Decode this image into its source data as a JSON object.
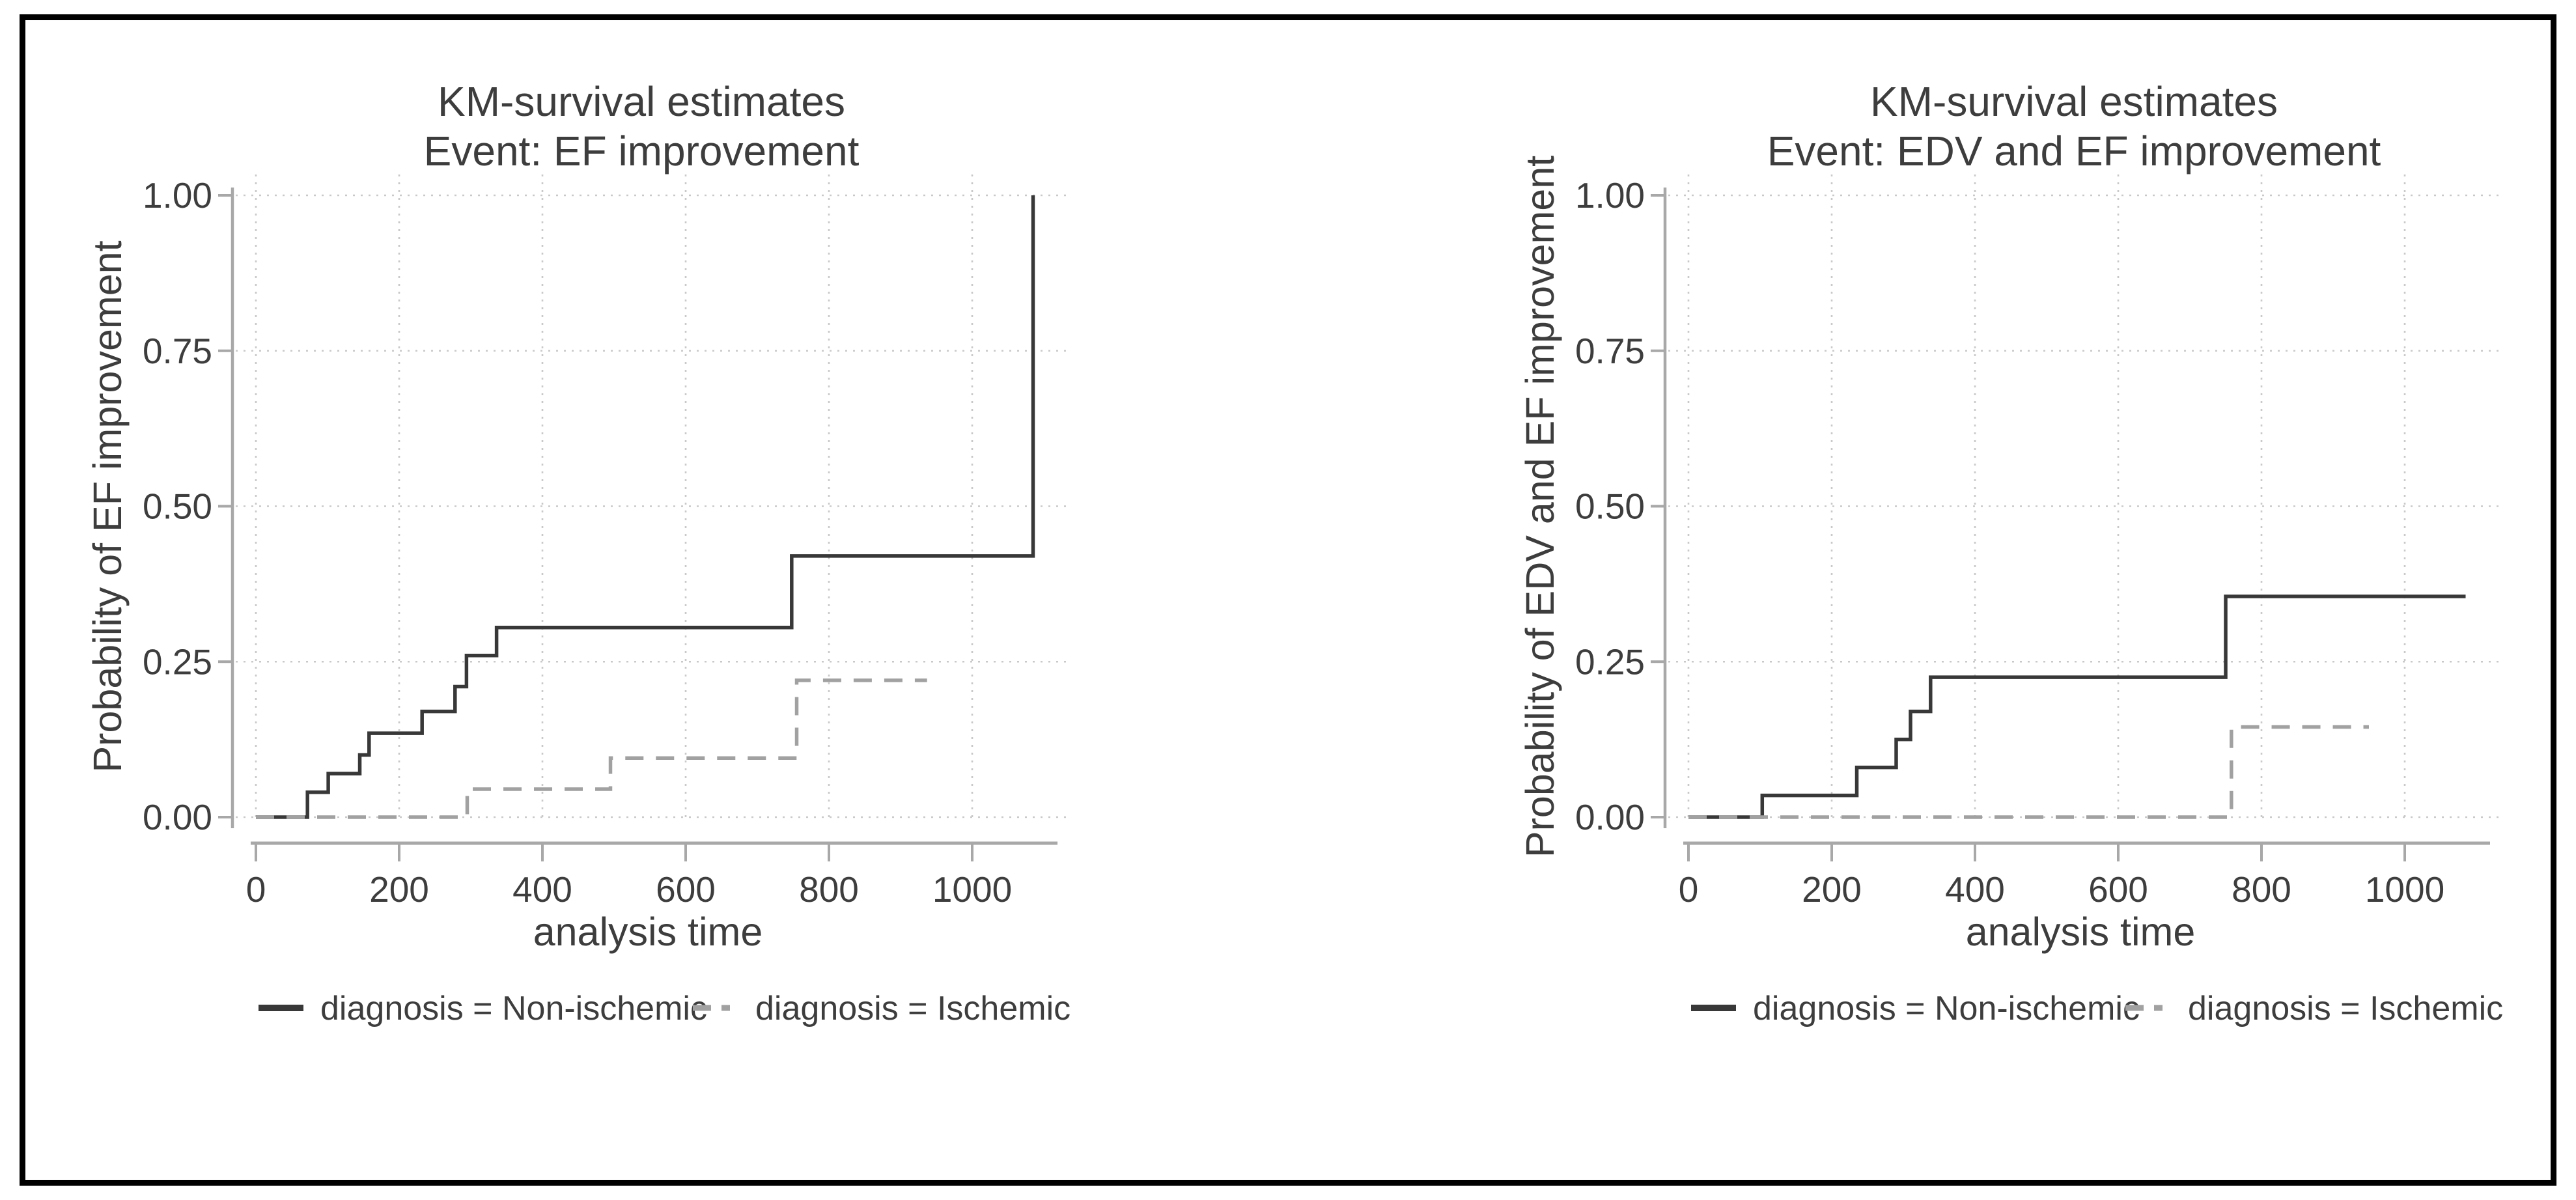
{
  "figure": {
    "background": "#ffffff",
    "frame_color": "#000000",
    "text_color": "#3d3d3d",
    "axis_color": "#a8a8a8",
    "grid_color": "#c9c9c9"
  },
  "chart_data": [
    {
      "type": "line",
      "subtype": "kaplan-meier-step",
      "title": "KM-survival estimates",
      "subtitle": "Event: EF improvement",
      "xlabel": "analysis time",
      "ylabel": "Probability of EF improvement",
      "xlim": [
        0,
        1120
      ],
      "ylim": [
        0,
        1
      ],
      "grid": true,
      "legend_position": "bottom",
      "xticks": [
        {
          "v": 0,
          "label": "0"
        },
        {
          "v": 200,
          "label": "200"
        },
        {
          "v": 400,
          "label": "400"
        },
        {
          "v": 600,
          "label": "600"
        },
        {
          "v": 800,
          "label": "800"
        },
        {
          "v": 1000,
          "label": "1000"
        }
      ],
      "yticks": [
        {
          "v": 0,
          "label": "0.00"
        },
        {
          "v": 0.25,
          "label": "0.25"
        },
        {
          "v": 0.5,
          "label": "0.50"
        },
        {
          "v": 0.75,
          "label": "0.75"
        },
        {
          "v": 1,
          "label": "1.00"
        }
      ],
      "series": [
        {
          "name": "diagnosis = Non-ischemic",
          "line_style": "solid",
          "color": "#383838",
          "end_time": 1085,
          "steps": [
            [
              0,
              0
            ],
            [
              72,
              0.04
            ],
            [
              101,
              0.07
            ],
            [
              145,
              0.1
            ],
            [
              158,
              0.135
            ],
            [
              232,
              0.17
            ],
            [
              278,
              0.21
            ],
            [
              294,
              0.26
            ],
            [
              336,
              0.305
            ],
            [
              748,
              0.42
            ],
            [
              1085,
              1.0
            ]
          ]
        },
        {
          "name": "diagnosis = Ischemic",
          "line_style": "dashed",
          "color": "#a1a1a1",
          "end_time": 937,
          "steps": [
            [
              0,
              0
            ],
            [
              295,
              0.045
            ],
            [
              495,
              0.095
            ],
            [
              755,
              0.22
            ]
          ]
        }
      ]
    },
    {
      "type": "line",
      "subtype": "kaplan-meier-step",
      "title": "KM-survival estimates",
      "subtitle": "Event: EDV and EF improvement",
      "xlabel": "analysis time",
      "ylabel": "Probability of EDV and EF improvement",
      "xlim": [
        0,
        1120
      ],
      "ylim": [
        0,
        1
      ],
      "grid": true,
      "legend_position": "bottom",
      "xticks": [
        {
          "v": 0,
          "label": "0"
        },
        {
          "v": 200,
          "label": "200"
        },
        {
          "v": 400,
          "label": "400"
        },
        {
          "v": 600,
          "label": "600"
        },
        {
          "v": 800,
          "label": "800"
        },
        {
          "v": 1000,
          "label": "1000"
        }
      ],
      "yticks": [
        {
          "v": 0,
          "label": "0.00"
        },
        {
          "v": 0.25,
          "label": "0.25"
        },
        {
          "v": 0.5,
          "label": "0.50"
        },
        {
          "v": 0.75,
          "label": "0.75"
        },
        {
          "v": 1,
          "label": "1.00"
        }
      ],
      "series": [
        {
          "name": "diagnosis = Non-ischemic",
          "line_style": "solid",
          "color": "#383838",
          "end_time": 1085,
          "steps": [
            [
              0,
              0
            ],
            [
              103,
              0.035
            ],
            [
              235,
              0.08
            ],
            [
              290,
              0.125
            ],
            [
              310,
              0.17
            ],
            [
              338,
              0.225
            ],
            [
              750,
              0.355
            ]
          ]
        },
        {
          "name": "diagnosis = Ischemic",
          "line_style": "dashed",
          "color": "#a1a1a1",
          "end_time": 950,
          "steps": [
            [
              0,
              0
            ],
            [
              758,
              0.145
            ]
          ]
        }
      ]
    }
  ]
}
